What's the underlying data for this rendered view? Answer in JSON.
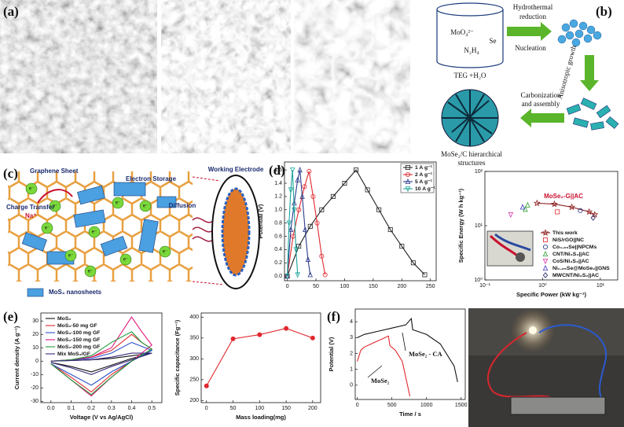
{
  "panel_labels": [
    "(a)",
    "(b)",
    "(c)",
    "(d)",
    "(e)",
    "(f)"
  ],
  "scheme_b": {
    "precursors": [
      "MoO₄²⁻",
      "Se",
      "N₂H₄"
    ],
    "solvent": "TEG +H₂O",
    "step_reduction": [
      "Hydrothermal",
      "reduction"
    ],
    "step_nucleation": "Nucleation",
    "step_growth": "Anisotropic growth",
    "step_carbonization": [
      "Carbonization",
      "and assembly"
    ],
    "product": [
      "MoSe₂/C hierarchical",
      "structures"
    ]
  },
  "scheme_c": {
    "graphene": "Graphene Sheet",
    "storage": "Electron Storage",
    "transfer": "Charge Transfer",
    "ion": "Na⁺",
    "electron": "e⁻",
    "electrode": "Working Electrode",
    "diffusion": "Diffusion",
    "legend": "MoS₂ nanosheets"
  },
  "chart_data": [
    {
      "type": "line",
      "ylabel": "Potential (V)",
      "xlim": [
        -5,
        260
      ],
      "ylim": [
        -0.07,
        1.72
      ],
      "xticks": [
        0,
        50,
        100,
        150,
        200,
        250
      ],
      "yticks": [
        {
          "value": 0,
          "label": "0.0"
        },
        0.2,
        0.4,
        0.6,
        0.8,
        {
          "value": 1,
          "label": "1.0"
        },
        1.2,
        1.4,
        1.6
      ],
      "legend": "upper right",
      "series": [
        {
          "name": "1 A g⁻¹",
          "color": "#222222",
          "marker": "square",
          "x": [
            0,
            20,
            40,
            60,
            80,
            100,
            120,
            140,
            160,
            180,
            200,
            220,
            240
          ],
          "values": [
            0,
            0.45,
            0.75,
            1.0,
            1.2,
            1.4,
            1.6,
            1.3,
            1.0,
            0.7,
            0.45,
            0.2,
            0.02
          ]
        },
        {
          "name": "2 A g⁻¹",
          "color": "#e0282e",
          "marker": "circle",
          "x": [
            0,
            10,
            20,
            30,
            38,
            45,
            52,
            60,
            66
          ],
          "values": [
            0,
            0.6,
            1.0,
            1.35,
            1.58,
            1.2,
            0.8,
            0.3,
            0.02
          ]
        },
        {
          "name": "5 A g⁻¹",
          "color": "#2b3a8c",
          "marker": "triangle",
          "x": [
            0,
            6,
            12,
            18,
            22,
            26,
            31,
            36,
            40
          ],
          "values": [
            0,
            0.7,
            1.1,
            1.45,
            1.6,
            1.2,
            0.7,
            0.25,
            0.02
          ]
        },
        {
          "name": "10 A g⁻¹",
          "color": "#1aa39a",
          "marker": "triangle-down",
          "x": [
            0,
            3,
            6,
            9,
            12,
            15,
            18
          ],
          "values": [
            0,
            0.8,
            1.3,
            1.6,
            1.0,
            0.4,
            0.02
          ]
        }
      ]
    },
    {
      "type": "scatter",
      "xlabel": "Specific Power (kW kg⁻¹)",
      "ylabel": "Specific Energy (W h kg⁻¹)",
      "xlog": true,
      "ylog": true,
      "xlim": [
        0.1,
        20
      ],
      "ylim": [
        1,
        100
      ],
      "xticks": [
        {
          "value": 0.1,
          "label": "10⁻¹"
        },
        {
          "value": 1,
          "label": "10⁰"
        },
        {
          "value": 10,
          "label": "10¹"
        }
      ],
      "yticks": [
        {
          "value": 1,
          "label": "10⁰"
        },
        {
          "value": 10,
          "label": "10¹"
        },
        {
          "value": 100,
          "label": "10²"
        }
      ],
      "annotation": "MoSe₂-G||AC",
      "legend": "lower right",
      "series": [
        {
          "name": "This work",
          "color": "#8b1a1a",
          "marker": "star",
          "line": true,
          "x": [
            0.8,
            1.6,
            3.2,
            6.4,
            8
          ],
          "values": [
            26,
            25,
            22,
            18,
            16
          ]
        },
        {
          "name": "NiS/rGO||NC",
          "color": "#e0282e",
          "marker": "square",
          "x": [
            1.8
          ],
          "values": [
            18
          ]
        },
        {
          "name": "Co₀.₈₅Se||NPCMs",
          "color": "#1f2a7a",
          "marker": "circle",
          "x": [
            4.5
          ],
          "values": [
            19
          ]
        },
        {
          "name": "CNT/Ni₃S₂||AC",
          "color": "#2ca02c",
          "marker": "triangle",
          "x": [
            0.5,
            0.55
          ],
          "values": [
            20,
            24
          ]
        },
        {
          "name": "CoS/Ni₃S₂||AC",
          "color": "#d62fa4",
          "marker": "triangle-down",
          "x": [
            0.28
          ],
          "values": [
            16
          ]
        },
        {
          "name": "Ni₀.₈₅Se@MoSe₂||GNS",
          "color": "#3a3ac0",
          "marker": "triangle",
          "x": [
            0.45
          ],
          "values": [
            22
          ]
        },
        {
          "name": "MWCNT/Ni₃S₂||AC",
          "color": "#1a1a5c",
          "marker": "diamond",
          "x": [
            7.5
          ],
          "values": [
            14
          ]
        }
      ]
    },
    {
      "type": "line",
      "xlabel": "Voltage (V vs Ag/AgCl)",
      "ylabel": "Current density (A g⁻¹)",
      "xlim": [
        -0.05,
        0.55
      ],
      "ylim": [
        -31,
        36
      ],
      "xticks": [
        {
          "value": 0,
          "label": "0.0"
        },
        0.1,
        0.2,
        0.3,
        0.4,
        0.5
      ],
      "yticks": [
        -30,
        -20,
        -10,
        0,
        10,
        20,
        30
      ],
      "legend": "upper left",
      "x": [
        0,
        0.1,
        0.2,
        0.3,
        0.4,
        0.45,
        0.5,
        0.4,
        0.3,
        0.2,
        0.1,
        0
      ],
      "series": [
        {
          "name": "MoS₂",
          "color": "#111111",
          "values": [
            0,
            0.5,
            1,
            2,
            4,
            5,
            6,
            2,
            -3,
            -8,
            -4,
            -1
          ]
        },
        {
          "name": "MoS₂-50 mg GF",
          "color": "#e0282e",
          "values": [
            0,
            1,
            3,
            8,
            20,
            14,
            9,
            0,
            -10,
            -23,
            -12,
            -2
          ]
        },
        {
          "name": "MoS₂-100 mg GF",
          "color": "#2b50c8",
          "values": [
            0,
            1,
            2,
            6,
            14,
            11,
            8,
            0,
            -8,
            -18,
            -10,
            -2
          ]
        },
        {
          "name": "MoS₂-150 mg GF",
          "color": "#e0157a",
          "values": [
            0,
            1,
            3,
            10,
            33,
            22,
            12,
            0,
            -12,
            -26,
            -14,
            -2
          ]
        },
        {
          "name": "MoS₂-200 mg GF",
          "color": "#1f9a3a",
          "values": [
            0,
            1,
            4,
            14,
            22,
            14,
            9,
            0,
            -12,
            -25,
            -14,
            -2
          ]
        },
        {
          "name": "Mix MoS₂/GF",
          "color": "#3a2a7a",
          "values": [
            0,
            0.5,
            1,
            3,
            6,
            6,
            6,
            1,
            -4,
            -10,
            -5,
            -1
          ]
        }
      ]
    },
    {
      "type": "line",
      "xlabel": "Mass loading(mg)",
      "ylabel": "Specific capacitance (Fg⁻¹)",
      "xlim": [
        -10,
        215
      ],
      "ylim": [
        195,
        410
      ],
      "xticks": [
        0,
        50,
        100,
        150,
        200
      ],
      "yticks": [
        200,
        250,
        300,
        350,
        400
      ],
      "series": [
        {
          "color": "#e0282e",
          "marker": "circle",
          "filled": true,
          "x": [
            0,
            50,
            100,
            150,
            200
          ],
          "values": [
            235,
            348,
            358,
            373,
            350
          ]
        }
      ]
    },
    {
      "type": "line",
      "xlabel": "Time / s",
      "ylabel": "Potential (V)",
      "xlim": [
        -30,
        1560
      ],
      "ylim": [
        -0.9,
        4.8
      ],
      "xticks": [
        0,
        500,
        1000,
        1500
      ],
      "yticks": [
        0,
        1,
        2,
        3,
        4
      ],
      "annotations": [
        "MoSe₂ - CA",
        "MoSe₂"
      ],
      "series": [
        {
          "color": "#111111",
          "x": [
            0,
            100,
            300,
            500,
            700,
            780,
            800,
            1000,
            1200,
            1400,
            1450
          ],
          "values": [
            3.0,
            3.2,
            3.4,
            3.6,
            3.8,
            4.2,
            3.5,
            3.2,
            2.6,
            1.2,
            0.2
          ]
        },
        {
          "color": "#e0282e",
          "x": [
            0,
            50,
            100,
            200,
            300,
            400,
            450,
            470,
            550,
            650,
            700,
            760
          ],
          "values": [
            1.5,
            2.2,
            2.4,
            2.6,
            2.8,
            3.0,
            3.1,
            2.5,
            2.2,
            1.5,
            0.5,
            -0.7
          ]
        }
      ]
    }
  ]
}
